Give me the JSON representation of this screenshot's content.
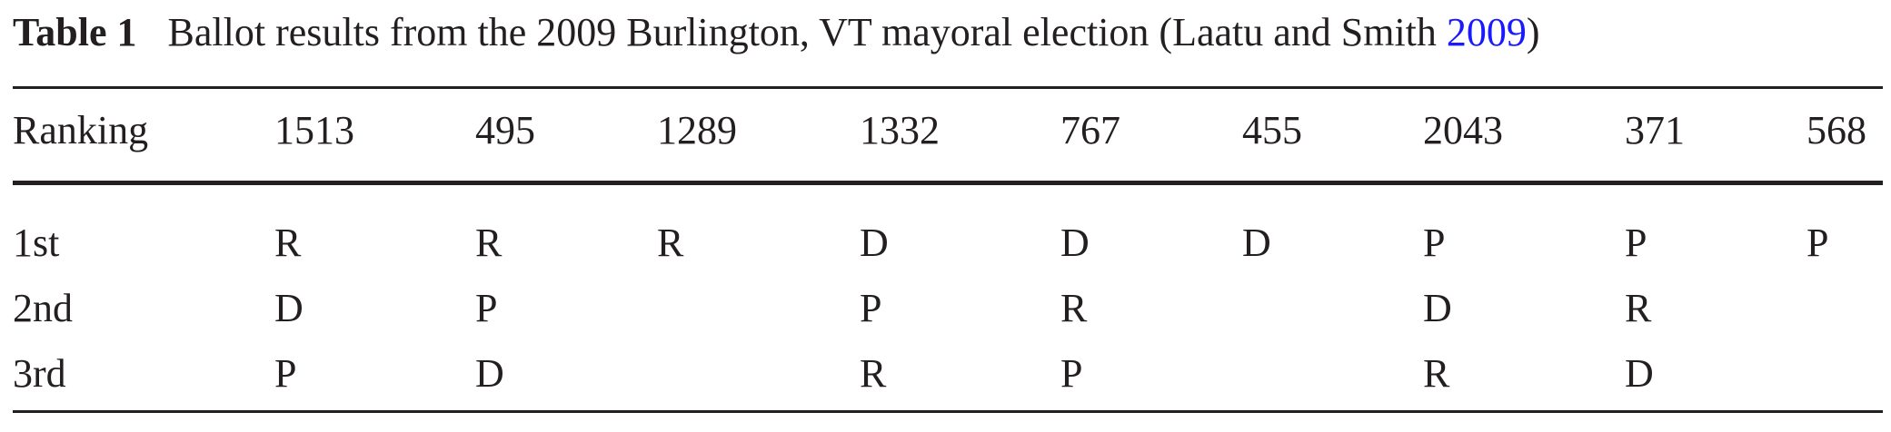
{
  "caption": {
    "label": "Table 1",
    "text": "Ballot results from the 2009 Burlington, VT mayoral election (Laatu and Smith ",
    "cite_year": "2009",
    "close": ")"
  },
  "table": {
    "header": [
      "Ranking",
      "1513",
      "495",
      "1289",
      "1332",
      "767",
      "455",
      "2043",
      "371",
      "568"
    ],
    "rows": [
      [
        "1st",
        "R",
        "R",
        "R",
        "D",
        "D",
        "D",
        "P",
        "P",
        "P"
      ],
      [
        "2nd",
        "D",
        "P",
        "",
        "P",
        "R",
        "",
        "D",
        "R",
        ""
      ],
      [
        "3rd",
        "P",
        "D",
        "",
        "R",
        "P",
        "",
        "R",
        "D",
        ""
      ]
    ]
  }
}
